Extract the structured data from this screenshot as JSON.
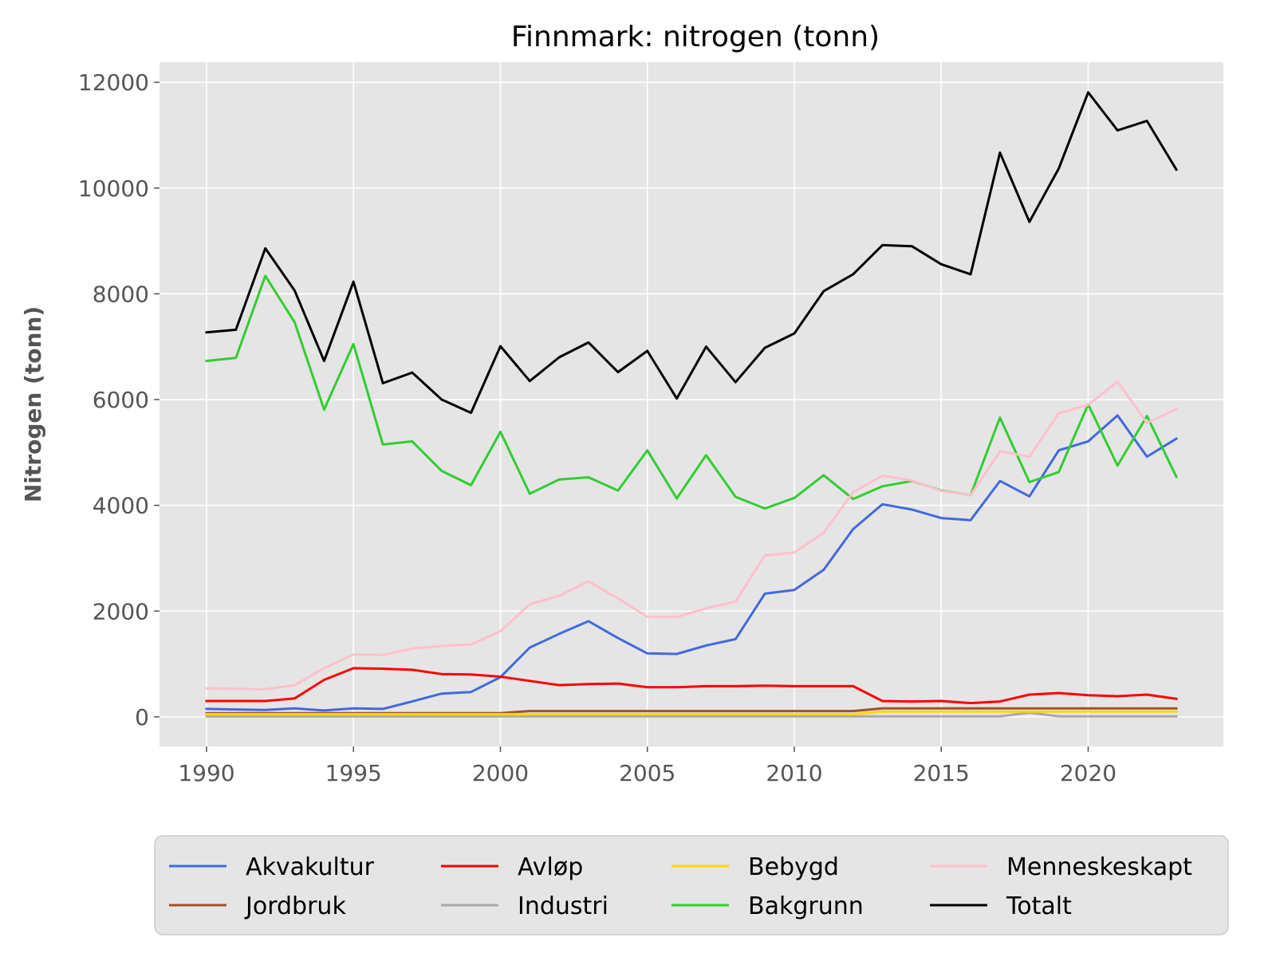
{
  "chart_data": {
    "type": "line",
    "title": "Finnmark: nitrogen (tonn)",
    "xlabel": "",
    "ylabel": "Nitrogen (tonn)",
    "xlim": [
      1988.4,
      2024.6
    ],
    "ylim": [
      -560,
      12380
    ],
    "x_ticks": [
      1990,
      1995,
      2000,
      2005,
      2010,
      2015,
      2020
    ],
    "y_ticks": [
      0,
      2000,
      4000,
      6000,
      8000,
      10000,
      12000
    ],
    "grid": true,
    "legend_position": "bottom",
    "x": [
      1990,
      1991,
      1992,
      1993,
      1994,
      1995,
      1996,
      1997,
      1998,
      1999,
      2000,
      2001,
      2002,
      2003,
      2004,
      2005,
      2006,
      2007,
      2008,
      2009,
      2010,
      2011,
      2012,
      2013,
      2014,
      2015,
      2016,
      2017,
      2018,
      2019,
      2020,
      2021,
      2022,
      2023
    ],
    "series": [
      {
        "name": "Akvakultur",
        "color": "#4169e1",
        "values": [
          150,
          140,
          130,
          160,
          120,
          160,
          150,
          290,
          440,
          470,
          750,
          1310,
          1570,
          1810,
          1490,
          1200,
          1190,
          1350,
          1470,
          2330,
          2400,
          2780,
          3550,
          4020,
          3920,
          3760,
          3720,
          4460,
          4170,
          5040,
          5210,
          5700,
          4920,
          5260
        ]
      },
      {
        "name": "Jordbruk",
        "color": "#a0522d",
        "values": [
          70,
          70,
          70,
          70,
          70,
          70,
          70,
          70,
          70,
          70,
          70,
          110,
          110,
          110,
          110,
          110,
          110,
          110,
          110,
          110,
          110,
          110,
          110,
          160,
          160,
          160,
          160,
          160,
          160,
          160,
          160,
          160,
          160,
          160
        ]
      },
      {
        "name": "Avløp",
        "color": "#ff0000",
        "values": [
          300,
          300,
          300,
          350,
          700,
          920,
          910,
          890,
          810,
          800,
          760,
          680,
          600,
          620,
          630,
          560,
          560,
          580,
          580,
          590,
          580,
          580,
          580,
          300,
          290,
          300,
          260,
          290,
          420,
          450,
          410,
          390,
          420,
          340
        ]
      },
      {
        "name": "Industri",
        "color": "#a9a9a9",
        "values": [
          10,
          10,
          10,
          10,
          10,
          10,
          10,
          10,
          10,
          10,
          10,
          10,
          10,
          10,
          10,
          10,
          10,
          10,
          10,
          10,
          10,
          10,
          10,
          10,
          10,
          10,
          10,
          10,
          80,
          10,
          10,
          10,
          10,
          10
        ]
      },
      {
        "name": "Bebygd",
        "color": "#ffd700",
        "values": [
          50,
          50,
          50,
          50,
          50,
          50,
          50,
          50,
          50,
          50,
          50,
          50,
          50,
          50,
          50,
          50,
          50,
          50,
          50,
          50,
          50,
          50,
          50,
          100,
          100,
          100,
          100,
          100,
          100,
          100,
          100,
          100,
          100,
          100
        ]
      },
      {
        "name": "Bakgrunn",
        "color": "#32cd32",
        "values": [
          6730,
          6790,
          8340,
          7460,
          5810,
          7050,
          5150,
          5210,
          4650,
          4380,
          5390,
          4220,
          4490,
          4530,
          4280,
          5040,
          4130,
          4950,
          4160,
          3940,
          4140,
          4570,
          4120,
          4360,
          4460,
          4280,
          4190,
          5660,
          4440,
          4630,
          5910,
          4750,
          5690,
          4540
        ]
      },
      {
        "name": "Menneskeskapt",
        "color": "#ffc0cb",
        "values": [
          540,
          530,
          520,
          600,
          920,
          1180,
          1170,
          1290,
          1340,
          1370,
          1620,
          2130,
          2290,
          2560,
          2240,
          1890,
          1890,
          2050,
          2180,
          3050,
          3110,
          3480,
          4250,
          4560,
          4470,
          4270,
          4190,
          5020,
          4920,
          5740,
          5900,
          6340,
          5560,
          5820
        ]
      },
      {
        "name": "Totalt",
        "color": "#000000",
        "values": [
          7270,
          7320,
          8860,
          8060,
          6730,
          8230,
          6310,
          6510,
          6000,
          5750,
          7010,
          6350,
          6800,
          7080,
          6520,
          6920,
          6020,
          7000,
          6330,
          6980,
          7250,
          8050,
          8370,
          8920,
          8900,
          8560,
          8370,
          10670,
          9360,
          10370,
          11810,
          11090,
          11270,
          10350
        ]
      }
    ],
    "legend": {
      "rows": [
        [
          "Akvakultur",
          "Avløp",
          "Bebygd",
          "Menneskeskapt"
        ],
        [
          "Jordbruk",
          "Industri",
          "Bakgrunn",
          "Totalt"
        ]
      ]
    }
  }
}
